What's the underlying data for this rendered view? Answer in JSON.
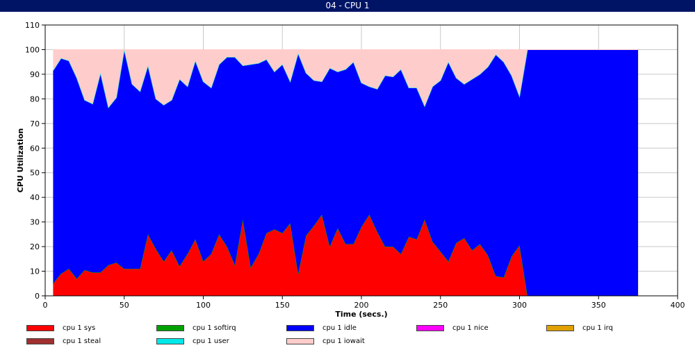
{
  "window": {
    "title": "04 - CPU 1"
  },
  "chart_data": {
    "type": "area",
    "stacked": true,
    "xlabel": "Time (secs.)",
    "ylabel": "CPU Utilization",
    "xlim": [
      0,
      400
    ],
    "ylim": [
      0,
      110
    ],
    "x_ticks": [
      0,
      50,
      100,
      150,
      200,
      250,
      300,
      350,
      400
    ],
    "y_ticks": [
      0,
      10,
      20,
      30,
      40,
      50,
      60,
      70,
      80,
      90,
      100,
      110
    ],
    "grid": true,
    "legend_position": "bottom",
    "x": [
      5,
      10,
      15,
      20,
      25,
      30,
      35,
      40,
      45,
      50,
      55,
      60,
      65,
      70,
      75,
      80,
      85,
      90,
      95,
      100,
      105,
      110,
      115,
      120,
      125,
      130,
      135,
      140,
      145,
      150,
      155,
      160,
      165,
      170,
      175,
      180,
      185,
      190,
      195,
      200,
      205,
      210,
      215,
      220,
      225,
      230,
      235,
      240,
      245,
      250,
      255,
      260,
      265,
      270,
      275,
      280,
      285,
      290,
      295,
      300,
      305,
      375
    ],
    "series": [
      {
        "name": "cpu 1 sys",
        "color": "#ff0000",
        "values": [
          5,
          9,
          11,
          7,
          10.5,
          9.5,
          9.5,
          12.5,
          13.5,
          11,
          11,
          11,
          25,
          19,
          14,
          18.5,
          12,
          17,
          23,
          14,
          17,
          25,
          20,
          12.5,
          31,
          11.5,
          17,
          25.5,
          27,
          25.5,
          29.5,
          9,
          24.5,
          28.5,
          33,
          20,
          27.5,
          21,
          21,
          28,
          33,
          26,
          20,
          20,
          17,
          24,
          23,
          31,
          22,
          18,
          14,
          21.5,
          23.5,
          18.5,
          21,
          16.5,
          8,
          7.5,
          16,
          20.5,
          0,
          0
        ]
      },
      {
        "name": "cpu 1 softirq",
        "color": "#00a000",
        "values": [
          0,
          0,
          0,
          0,
          0,
          0,
          0,
          0,
          0,
          0,
          0,
          0,
          0,
          0,
          0,
          0,
          0,
          0,
          0,
          0,
          0,
          0,
          0,
          0,
          0,
          0,
          0,
          0,
          0,
          0,
          0,
          0,
          0,
          0,
          0,
          0,
          0,
          0,
          0,
          0,
          0,
          0,
          0,
          0,
          0,
          0,
          0,
          0,
          0,
          0,
          0,
          0,
          0,
          0,
          0,
          0,
          0,
          0,
          0,
          0,
          0,
          0
        ]
      },
      {
        "name": "cpu 1 idle",
        "color": "#0000ff",
        "values": [
          86.5,
          87.5,
          84.5,
          81.5,
          69,
          68.5,
          81,
          64,
          67,
          89,
          75,
          72,
          68.5,
          61,
          63.5,
          61,
          76,
          68,
          72.5,
          73,
          67.5,
          69,
          77,
          84.5,
          62.5,
          82.5,
          77.5,
          70.5,
          64,
          68.5,
          57.5,
          89.5,
          66,
          59,
          54,
          72.5,
          63.5,
          71,
          74,
          58.5,
          52,
          58,
          69.5,
          69,
          75,
          60.5,
          61.5,
          46,
          63,
          69.5,
          81,
          67,
          62.5,
          69.5,
          69,
          76.5,
          90,
          87.5,
          73.5,
          60.5,
          100,
          100
        ]
      },
      {
        "name": "cpu 1 nice",
        "color": "#ff00ff",
        "values": [
          0,
          0,
          0,
          0,
          0,
          0,
          0,
          0,
          0,
          0,
          0,
          0,
          0,
          0,
          0,
          0,
          0,
          0,
          0,
          0,
          0,
          0,
          0,
          0,
          0,
          0,
          0,
          0,
          0,
          0,
          0,
          0,
          0,
          0,
          0,
          0,
          0,
          0,
          0,
          0,
          0,
          0,
          0,
          0,
          0,
          0,
          0,
          0,
          0,
          0,
          0,
          0,
          0,
          0,
          0,
          0,
          0,
          0,
          0,
          0,
          0,
          0
        ]
      },
      {
        "name": "cpu 1 irq",
        "color": "#e0a000",
        "values": [
          0,
          0,
          0,
          0,
          0,
          0,
          0,
          0,
          0,
          0,
          0,
          0,
          0,
          0,
          0,
          0,
          0,
          0,
          0,
          0,
          0,
          0,
          0,
          0,
          0,
          0,
          0,
          0,
          0,
          0,
          0,
          0,
          0,
          0,
          0,
          0,
          0,
          0,
          0,
          0,
          0,
          0,
          0,
          0,
          0,
          0,
          0,
          0,
          0,
          0,
          0,
          0,
          0,
          0,
          0,
          0,
          0,
          0,
          0,
          0,
          0,
          0
        ]
      },
      {
        "name": "cpu 1 steal",
        "color": "#a03030",
        "values": [
          0,
          0,
          0,
          0,
          0,
          0,
          0,
          0,
          0,
          0,
          0,
          0,
          0,
          0,
          0,
          0,
          0,
          0,
          0,
          0,
          0,
          0,
          0,
          0,
          0,
          0,
          0,
          0,
          0,
          0,
          0,
          0,
          0,
          0,
          0,
          0,
          0,
          0,
          0,
          0,
          0,
          0,
          0,
          0,
          0,
          0,
          0,
          0,
          0,
          0,
          0,
          0,
          0,
          0,
          0,
          0,
          0,
          0,
          0,
          0,
          0,
          0
        ]
      },
      {
        "name": "cpu 1 user",
        "color": "#00e8e8",
        "values": [
          0,
          0,
          0,
          0,
          0,
          0,
          0,
          0,
          0,
          0,
          0,
          0,
          0,
          0,
          0,
          0,
          0,
          0,
          0,
          0,
          0,
          0,
          0,
          0,
          0,
          0,
          0,
          0,
          0,
          0,
          0,
          0,
          0,
          0,
          0,
          0,
          0,
          0,
          0,
          0,
          0,
          0,
          0,
          0,
          0,
          0,
          0,
          0,
          0,
          0,
          0,
          0,
          0,
          0,
          0,
          0,
          0,
          0,
          0,
          0,
          0,
          0
        ]
      },
      {
        "name": "cpu 1 iowait",
        "color": "#ffcccc",
        "values": [
          8.5,
          3.5,
          4.5,
          11.5,
          20.5,
          22,
          9.5,
          23.5,
          19.5,
          0,
          14,
          17,
          6.5,
          20,
          22.5,
          20.5,
          12,
          15,
          4.5,
          13,
          15.5,
          6,
          3,
          3,
          6.5,
          6,
          5.5,
          4,
          9,
          6,
          13,
          1.5,
          9.5,
          12.5,
          13,
          7.5,
          9,
          8,
          5,
          13.5,
          15,
          16,
          10.5,
          11,
          8,
          15.5,
          15.5,
          23,
          15,
          12.5,
          5,
          11.5,
          14,
          12,
          10,
          7,
          2,
          5,
          10.5,
          19,
          0,
          0
        ]
      }
    ]
  }
}
